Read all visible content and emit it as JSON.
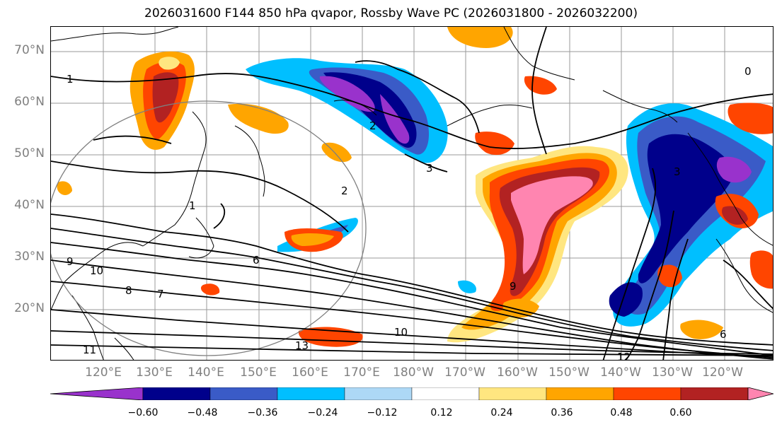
{
  "title": "2026031600 F144 850 hPa qvapor, Rossby Wave PC (2026031800 - 2026032200)",
  "lat_labels": [
    "70°N",
    "60°N",
    "50°N",
    "40°N",
    "30°N",
    "20°N"
  ],
  "lon_labels": [
    "120°E",
    "130°E",
    "140°E",
    "150°E",
    "160°E",
    "170°E",
    "180°W",
    "170°W",
    "160°W",
    "150°W",
    "140°W",
    "130°W",
    "120°W"
  ],
  "colorbar": {
    "ticks": [
      "−0.60",
      "−0.48",
      "−0.36",
      "−0.24",
      "−0.12",
      "0.12",
      "0.24",
      "0.36",
      "0.48",
      "0.60"
    ],
    "colors": [
      "#9932CC",
      "#00008B",
      "#3A5BC7",
      "#00BFFF",
      "#ADD8F6",
      "#FFFFFF",
      "#FFE680",
      "#FFA500",
      "#FF4500",
      "#B22222",
      "#FF85B0"
    ]
  },
  "contour_labels": [
    "1",
    "1",
    "2",
    "2",
    "3",
    "3",
    "6",
    "6",
    "7",
    "8",
    "9",
    "9",
    "10",
    "10",
    "11",
    "12",
    "13",
    "0"
  ]
}
